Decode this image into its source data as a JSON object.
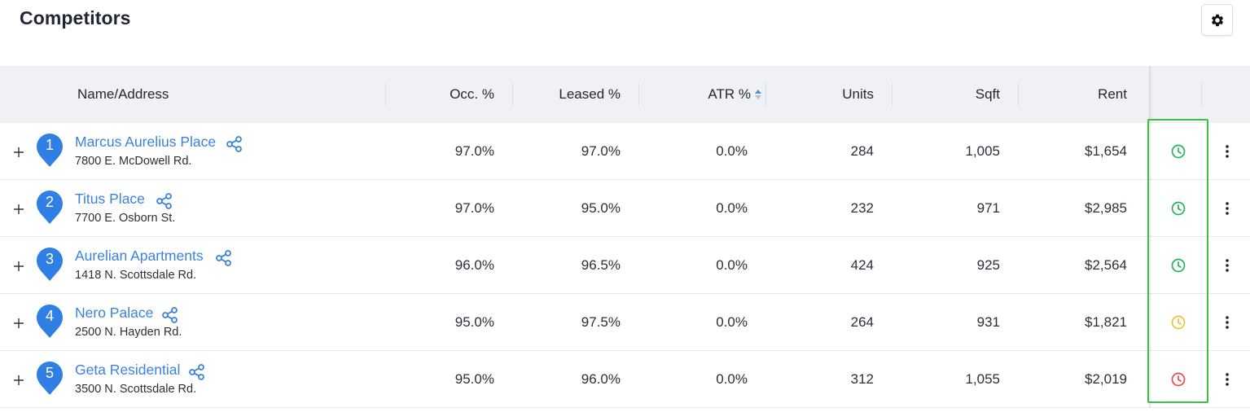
{
  "page": {
    "title": "Competitors"
  },
  "colors": {
    "link": "#3b82e0",
    "marker": "#2f7fe4",
    "green": "#22b35e",
    "yellow": "#f0c030",
    "red": "#e84b4b",
    "highlight": "#3fbf3f"
  },
  "columns": {
    "name": "Name/Address",
    "occ": "Occ. %",
    "leased": "Leased %",
    "atr": "ATR %",
    "units": "Units",
    "sqft": "Sqft",
    "rent": "Rent"
  },
  "rows": [
    {
      "rank": "1",
      "name": "Marcus Aurelius Place",
      "address": "7800 E. McDowell Rd.",
      "occ": "97.0%",
      "leased": "97.0%",
      "atr": "0.0%",
      "units": "284",
      "sqft": "1,005",
      "rent": "$1,654",
      "status": "green"
    },
    {
      "rank": "2",
      "name": "Titus Place",
      "address": "7700 E. Osborn St.",
      "occ": "97.0%",
      "leased": "95.0%",
      "atr": "0.0%",
      "units": "232",
      "sqft": "971",
      "rent": "$2,985",
      "status": "green"
    },
    {
      "rank": "3",
      "name": "Aurelian Apartments",
      "address": "1418 N. Scottsdale Rd.",
      "occ": "96.0%",
      "leased": "96.5%",
      "atr": "0.0%",
      "units": "424",
      "sqft": "925",
      "rent": "$2,564",
      "status": "green"
    },
    {
      "rank": "4",
      "name": "Nero Palace",
      "address": "2500 N. Hayden Rd.",
      "occ": "95.0%",
      "leased": "97.5%",
      "atr": "0.0%",
      "units": "264",
      "sqft": "931",
      "rent": "$1,821",
      "status": "yellow"
    },
    {
      "rank": "5",
      "name": "Geta Residential",
      "address": "3500 N. Scottsdale Rd.",
      "occ": "95.0%",
      "leased": "96.0%",
      "atr": "0.0%",
      "units": "312",
      "sqft": "1,055",
      "rent": "$2,019",
      "status": "red"
    }
  ]
}
